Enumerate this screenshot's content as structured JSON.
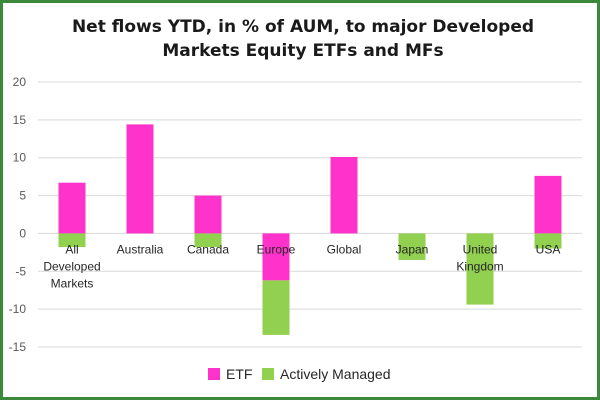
{
  "chart_data": {
    "type": "bar",
    "title_lines": [
      "Net flows YTD, in % of AUM, to major Developed",
      "Markets Equity ETFs and MFs"
    ],
    "categories": [
      [
        "All",
        "Developed",
        "Markets"
      ],
      [
        "Australia"
      ],
      [
        "Canada"
      ],
      [
        "Europe"
      ],
      [
        "Global"
      ],
      [
        "Japan"
      ],
      [
        "United",
        "Kingdom"
      ],
      [
        "USA"
      ]
    ],
    "series": [
      {
        "name": "ETF",
        "color": "#ff33cc",
        "values": [
          6.7,
          14.4,
          5.0,
          -6.2,
          10.1,
          0,
          0,
          7.6
        ]
      },
      {
        "name": "Actively Managed",
        "color": "#92d050",
        "values": [
          -1.8,
          0,
          -1.8,
          -7.2,
          0,
          -3.5,
          -9.4,
          -2.0
        ]
      }
    ],
    "stacked": true,
    "ylim": [
      -15,
      20
    ],
    "yticks": [
      -15,
      -10,
      -5,
      0,
      5,
      10,
      15,
      20
    ],
    "grid": true,
    "legend": "bottom",
    "xlabel": "",
    "ylabel": ""
  }
}
